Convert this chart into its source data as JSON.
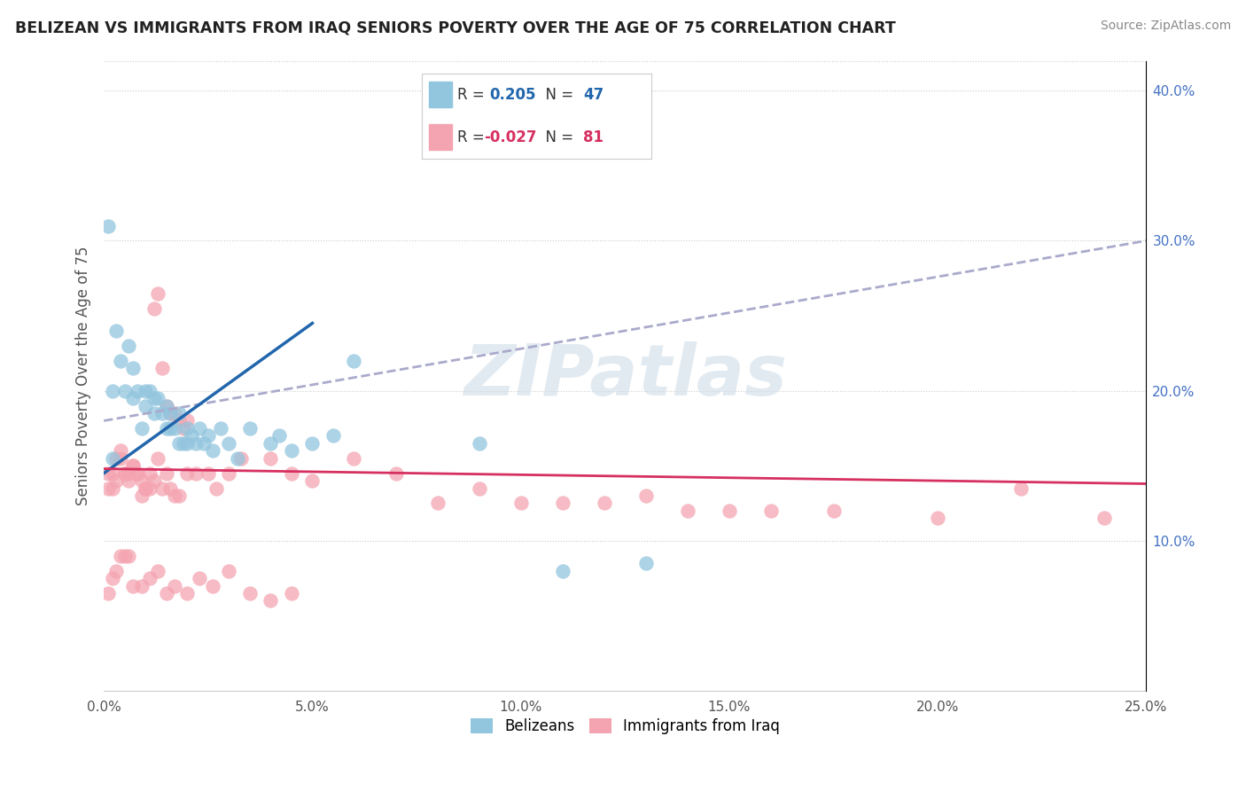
{
  "title": "BELIZEAN VS IMMIGRANTS FROM IRAQ SENIORS POVERTY OVER THE AGE OF 75 CORRELATION CHART",
  "source": "Source: ZipAtlas.com",
  "ylabel": "Seniors Poverty Over the Age of 75",
  "xlim": [
    0.0,
    0.25
  ],
  "ylim": [
    0.0,
    0.42
  ],
  "xticks": [
    0.0,
    0.05,
    0.1,
    0.15,
    0.2,
    0.25
  ],
  "yticks_right": [
    0.1,
    0.2,
    0.3,
    0.4
  ],
  "belizean_R": 0.205,
  "belizean_N": 47,
  "iraq_R": -0.027,
  "iraq_N": 81,
  "belizean_color": "#92c5de",
  "iraq_color": "#f4a4b0",
  "trend_belizean_color": "#2166ac",
  "trend_iraq_color": "#d63060",
  "trend_belizean_x0": 0.0,
  "trend_belizean_y0": 0.145,
  "trend_belizean_x1": 0.05,
  "trend_belizean_y1": 0.245,
  "trend_iraq_x0": 0.0,
  "trend_iraq_y0": 0.148,
  "trend_iraq_x1": 0.25,
  "trend_iraq_y1": 0.138,
  "trend_dashed_color": "#aaaacc",
  "trend_dashed_x0": 0.0,
  "trend_dashed_y0": 0.18,
  "trend_dashed_x1": 0.25,
  "trend_dashed_y1": 0.3,
  "belizean_x": [
    0.001,
    0.002,
    0.003,
    0.004,
    0.005,
    0.006,
    0.007,
    0.007,
    0.008,
    0.009,
    0.01,
    0.01,
    0.011,
    0.012,
    0.012,
    0.013,
    0.014,
    0.015,
    0.015,
    0.016,
    0.016,
    0.017,
    0.018,
    0.018,
    0.019,
    0.02,
    0.02,
    0.021,
    0.022,
    0.023,
    0.024,
    0.025,
    0.026,
    0.028,
    0.03,
    0.032,
    0.035,
    0.04,
    0.042,
    0.045,
    0.05,
    0.055,
    0.06,
    0.09,
    0.11,
    0.13,
    0.002
  ],
  "belizean_y": [
    0.31,
    0.2,
    0.24,
    0.22,
    0.2,
    0.23,
    0.215,
    0.195,
    0.2,
    0.175,
    0.2,
    0.19,
    0.2,
    0.195,
    0.185,
    0.195,
    0.185,
    0.19,
    0.175,
    0.185,
    0.175,
    0.175,
    0.185,
    0.165,
    0.165,
    0.175,
    0.165,
    0.17,
    0.165,
    0.175,
    0.165,
    0.17,
    0.16,
    0.175,
    0.165,
    0.155,
    0.175,
    0.165,
    0.17,
    0.16,
    0.165,
    0.17,
    0.22,
    0.165,
    0.08,
    0.085,
    0.155
  ],
  "iraq_x": [
    0.001,
    0.002,
    0.003,
    0.004,
    0.005,
    0.006,
    0.007,
    0.008,
    0.009,
    0.01,
    0.011,
    0.012,
    0.013,
    0.014,
    0.015,
    0.016,
    0.017,
    0.018,
    0.019,
    0.02,
    0.001,
    0.002,
    0.003,
    0.004,
    0.005,
    0.006,
    0.007,
    0.008,
    0.009,
    0.01,
    0.011,
    0.012,
    0.013,
    0.014,
    0.015,
    0.016,
    0.017,
    0.018,
    0.02,
    0.022,
    0.025,
    0.027,
    0.03,
    0.033,
    0.04,
    0.045,
    0.05,
    0.06,
    0.07,
    0.08,
    0.09,
    0.1,
    0.11,
    0.12,
    0.13,
    0.14,
    0.15,
    0.16,
    0.175,
    0.2,
    0.22,
    0.24,
    0.001,
    0.002,
    0.003,
    0.004,
    0.005,
    0.006,
    0.007,
    0.009,
    0.011,
    0.013,
    0.015,
    0.017,
    0.02,
    0.023,
    0.026,
    0.03,
    0.035,
    0.04,
    0.045
  ],
  "iraq_y": [
    0.135,
    0.145,
    0.155,
    0.16,
    0.145,
    0.14,
    0.15,
    0.145,
    0.14,
    0.135,
    0.145,
    0.255,
    0.265,
    0.215,
    0.19,
    0.185,
    0.185,
    0.18,
    0.175,
    0.18,
    0.145,
    0.135,
    0.14,
    0.155,
    0.145,
    0.145,
    0.15,
    0.145,
    0.13,
    0.135,
    0.135,
    0.14,
    0.155,
    0.135,
    0.145,
    0.135,
    0.13,
    0.13,
    0.145,
    0.145,
    0.145,
    0.135,
    0.145,
    0.155,
    0.155,
    0.145,
    0.14,
    0.155,
    0.145,
    0.125,
    0.135,
    0.125,
    0.125,
    0.125,
    0.13,
    0.12,
    0.12,
    0.12,
    0.12,
    0.115,
    0.135,
    0.115,
    0.065,
    0.075,
    0.08,
    0.09,
    0.09,
    0.09,
    0.07,
    0.07,
    0.075,
    0.08,
    0.065,
    0.07,
    0.065,
    0.075,
    0.07,
    0.08,
    0.065,
    0.06,
    0.065
  ],
  "watermark_text": "ZIPatlas",
  "background_color": "#ffffff",
  "grid_color": "#cccccc"
}
